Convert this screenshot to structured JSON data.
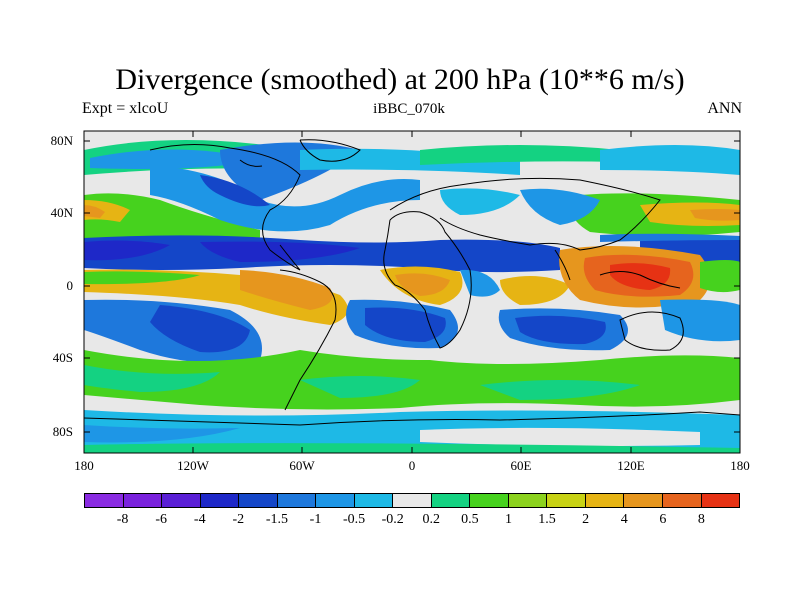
{
  "figure": {
    "title": "Divergence (smoothed) at 200 hPa (10**6 m/s)",
    "left_subtitle": "Expt = xlcoU",
    "center_subtitle": "iBBC_070k",
    "right_subtitle": "ANN"
  },
  "axes": {
    "lat_ticks": [
      "80N",
      "40N",
      "0",
      "40S",
      "80S"
    ],
    "lon_ticks": [
      "180",
      "120W",
      "60W",
      "0",
      "60E",
      "120E",
      "180"
    ]
  },
  "colorbar": {
    "labels": [
      "-8",
      "-6",
      "-4",
      "-2",
      "-1.5",
      "-1",
      "-0.5",
      "-0.2",
      "0.2",
      "0.5",
      "1",
      "1.5",
      "2",
      "4",
      "6",
      "8"
    ],
    "colors": [
      "#8a2be2",
      "#7a22dd",
      "#5a1fd6",
      "#1e28c8",
      "#1446c8",
      "#1e78dc",
      "#1e96e6",
      "#1eb9e6",
      "#e8e8e8",
      "#14d282",
      "#46d21e",
      "#8cd21e",
      "#c8d214",
      "#e6b414",
      "#e6961e",
      "#e6641e",
      "#e63214"
    ]
  },
  "map_colors": {
    "background": "#e8e8e8",
    "land_outline": "#000000"
  }
}
